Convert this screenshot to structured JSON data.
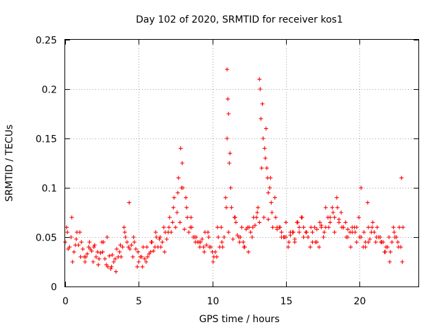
{
  "chart_data": {
    "type": "scatter",
    "title": "Day 102 of 2020, SRMTID for receiver kos1",
    "xlabel": "GPS time / hours",
    "ylabel": "SRMTID / TECUs",
    "xlim": [
      0,
      24
    ],
    "ylim": [
      0,
      0.25
    ],
    "xticks": [
      0,
      5,
      10,
      15,
      20
    ],
    "xtick_labels": [
      "0",
      "5",
      "10",
      "15",
      "20"
    ],
    "yticks": [
      0,
      0.05,
      0.1,
      0.15,
      0.2,
      0.25
    ],
    "ytick_labels": [
      "0",
      "0.05",
      "0.1",
      "0.15",
      "0.2",
      "0.25"
    ],
    "grid": true,
    "marker": "+",
    "series": [
      {
        "name": "SRMTID",
        "color": "#ff0000",
        "x": [
          0.0,
          0.3,
          0.6,
          0.9,
          1.2,
          1.5,
          1.8,
          2.1,
          2.4,
          2.7,
          3.0,
          3.3,
          3.6,
          3.9,
          4.2,
          4.5,
          4.8,
          5.1,
          5.4,
          5.7,
          6.0,
          6.3,
          6.6,
          6.9,
          7.2,
          7.5,
          7.8,
          8.1,
          8.4,
          8.7,
          9.0,
          9.3,
          9.6,
          9.9,
          10.2,
          10.5,
          10.8,
          11.1,
          11.4,
          11.7,
          12.0,
          12.3,
          12.6,
          12.9,
          13.2,
          13.5,
          13.8,
          14.1,
          14.4,
          14.7,
          15.0,
          15.3,
          15.6,
          15.9,
          16.2,
          16.5,
          16.8,
          17.1,
          17.4,
          17.7,
          18.0,
          18.3,
          18.6,
          18.9,
          19.2,
          19.5,
          19.8,
          20.1,
          20.4,
          20.7,
          21.0,
          21.3,
          21.6,
          21.9,
          22.2,
          22.5,
          22.8,
          0.15,
          0.45,
          0.75,
          1.05,
          1.35,
          1.65,
          1.95,
          2.25,
          2.55,
          2.85,
          3.15,
          3.45,
          3.75,
          4.05,
          4.35,
          4.65,
          4.95,
          5.25,
          5.55,
          5.85,
          6.15,
          6.45,
          6.75,
          7.05,
          7.35,
          7.65,
          7.95,
          8.25,
          8.55,
          8.85,
          9.15,
          9.45,
          9.75,
          10.05,
          10.35,
          10.65,
          10.95,
          11.25,
          11.55,
          11.85,
          12.15,
          12.45,
          12.75,
          13.05,
          13.35,
          13.65,
          13.95,
          14.25,
          14.55,
          14.85,
          15.15,
          15.45,
          15.75,
          16.05,
          16.35,
          16.65,
          16.95,
          17.25,
          17.55,
          17.85,
          18.15,
          18.45,
          18.75,
          19.05,
          19.35,
          19.65,
          19.95,
          20.25,
          20.55,
          20.85,
          21.15,
          21.45,
          21.75,
          22.05,
          22.35,
          22.65,
          22.95,
          0.1,
          0.5,
          0.8,
          1.1,
          1.4,
          1.7,
          2.0,
          2.3,
          2.6,
          2.9,
          3.2,
          3.5,
          3.8,
          4.1,
          4.4,
          4.7,
          5.0,
          5.3,
          5.6,
          5.9,
          6.2,
          6.5,
          6.8,
          7.1,
          7.4,
          7.7,
          7.85,
          8.0,
          8.2,
          8.5,
          8.8,
          9.1,
          9.4,
          9.7,
          10.0,
          10.3,
          10.6,
          10.9,
          11.0,
          11.05,
          11.15,
          11.3,
          11.6,
          11.9,
          12.2,
          12.5,
          12.8,
          13.1,
          13.25,
          13.3,
          13.45,
          13.6,
          13.75,
          13.9,
          14.0,
          14.3,
          14.6,
          14.9,
          15.2,
          15.5,
          15.8,
          16.1,
          16.4,
          16.7,
          17.0,
          17.3,
          17.6,
          17.9,
          18.2,
          18.5,
          18.8,
          19.1,
          19.4,
          19.7,
          20.0,
          20.3,
          20.6,
          20.9,
          21.2,
          21.5,
          21.8,
          22.1,
          22.4,
          22.7,
          22.85,
          0.2,
          0.4,
          0.7,
          1.0,
          1.3,
          1.6,
          1.9,
          2.2,
          2.5,
          2.8,
          3.1,
          3.4,
          3.7,
          4.0,
          4.3,
          4.6,
          4.9,
          5.2,
          5.5,
          5.8,
          6.1,
          6.4,
          6.7,
          7.0,
          7.3,
          7.6,
          7.9,
          8.3,
          8.6,
          8.9,
          9.2,
          9.5,
          9.8,
          10.1,
          10.4,
          10.7,
          11.0,
          11.1,
          11.2,
          11.5,
          11.8,
          12.1,
          12.4,
          12.7,
          13.0,
          13.2,
          13.4,
          13.55,
          13.7,
          13.8,
          14.05,
          14.4,
          14.7,
          15.0,
          15.3,
          15.6,
          15.9,
          16.2,
          16.5,
          16.8,
          17.1,
          17.4,
          17.7,
          18.0,
          18.3,
          18.6,
          18.9,
          19.2,
          19.5,
          19.8,
          20.1,
          20.4,
          20.6,
          20.8,
          21.1,
          21.4,
          21.7,
          22.0,
          22.3,
          22.6,
          22.9
        ],
        "y": [
          0.045,
          0.04,
          0.035,
          0.042,
          0.038,
          0.033,
          0.036,
          0.03,
          0.034,
          0.028,
          0.031,
          0.025,
          0.03,
          0.04,
          0.045,
          0.042,
          0.038,
          0.03,
          0.028,
          0.033,
          0.036,
          0.04,
          0.045,
          0.048,
          0.055,
          0.06,
          0.065,
          0.058,
          0.055,
          0.05,
          0.045,
          0.048,
          0.042,
          0.04,
          0.035,
          0.04,
          0.05,
          0.055,
          0.048,
          0.052,
          0.06,
          0.058,
          0.055,
          0.062,
          0.065,
          0.07,
          0.068,
          0.06,
          0.058,
          0.055,
          0.05,
          0.052,
          0.048,
          0.055,
          0.06,
          0.05,
          0.045,
          0.058,
          0.062,
          0.06,
          0.065,
          0.07,
          0.068,
          0.06,
          0.058,
          0.055,
          0.06,
          0.05,
          0.045,
          0.048,
          0.055,
          0.05,
          0.045,
          0.04,
          0.045,
          0.05,
          0.04,
          0.055,
          0.07,
          0.048,
          0.03,
          0.025,
          0.045,
          0.04,
          0.022,
          0.035,
          0.05,
          0.02,
          0.015,
          0.042,
          0.055,
          0.085,
          0.05,
          0.035,
          0.02,
          0.04,
          0.045,
          0.055,
          0.05,
          0.035,
          0.06,
          0.08,
          0.095,
          0.125,
          0.08,
          0.07,
          0.045,
          0.04,
          0.035,
          0.05,
          0.025,
          0.06,
          0.045,
          0.08,
          0.1,
          0.07,
          0.045,
          0.04,
          0.035,
          0.06,
          0.075,
          0.12,
          0.16,
          0.11,
          0.09,
          0.06,
          0.05,
          0.04,
          0.055,
          0.065,
          0.07,
          0.055,
          0.04,
          0.06,
          0.04,
          0.05,
          0.07,
          0.08,
          0.09,
          0.075,
          0.065,
          0.055,
          0.06,
          0.07,
          0.04,
          0.085,
          0.06,
          0.05,
          0.045,
          0.035,
          0.025,
          0.055,
          0.04,
          0.06,
          0.06,
          0.025,
          0.055,
          0.045,
          0.03,
          0.038,
          0.042,
          0.028,
          0.045,
          0.02,
          0.032,
          0.038,
          0.03,
          0.05,
          0.038,
          0.045,
          0.025,
          0.04,
          0.03,
          0.045,
          0.05,
          0.04,
          0.055,
          0.07,
          0.09,
          0.11,
          0.14,
          0.1,
          0.09,
          0.06,
          0.05,
          0.045,
          0.04,
          0.055,
          0.035,
          0.03,
          0.06,
          0.09,
          0.15,
          0.19,
          0.125,
          0.08,
          0.065,
          0.05,
          0.04,
          0.06,
          0.07,
          0.08,
          0.2,
          0.17,
          0.15,
          0.13,
          0.11,
          0.1,
          0.085,
          0.07,
          0.06,
          0.05,
          0.045,
          0.055,
          0.065,
          0.07,
          0.055,
          0.06,
          0.045,
          0.065,
          0.055,
          0.06,
          0.075,
          0.08,
          0.06,
          0.05,
          0.04,
          0.055,
          0.05,
          0.055,
          0.045,
          0.065,
          0.06,
          0.045,
          0.04,
          0.035,
          0.05,
          0.06,
          0.11,
          0.038,
          0.05,
          0.042,
          0.055,
          0.03,
          0.04,
          0.025,
          0.035,
          0.045,
          0.022,
          0.018,
          0.028,
          0.035,
          0.06,
          0.04,
          0.03,
          0.02,
          0.03,
          0.025,
          0.035,
          0.04,
          0.048,
          0.06,
          0.055,
          0.065,
          0.075,
          0.1,
          0.07,
          0.06,
          0.05,
          0.045,
          0.055,
          0.04,
          0.03,
          0.05,
          0.04,
          0.22,
          0.175,
          0.135,
          0.07,
          0.05,
          0.045,
          0.06,
          0.05,
          0.07,
          0.21,
          0.185,
          0.14,
          0.12,
          0.095,
          0.075,
          0.06,
          0.05,
          0.065,
          0.055,
          0.045,
          0.06,
          0.05,
          0.05,
          0.055,
          0.045,
          0.06,
          0.08,
          0.07,
          0.055,
          0.065,
          0.06,
          0.05,
          0.06,
          0.045,
          0.1,
          0.04,
          0.06,
          0.055,
          0.045,
          0.05,
          0.035,
          0.05,
          0.06,
          0.045,
          0.025
        ]
      }
    ]
  }
}
